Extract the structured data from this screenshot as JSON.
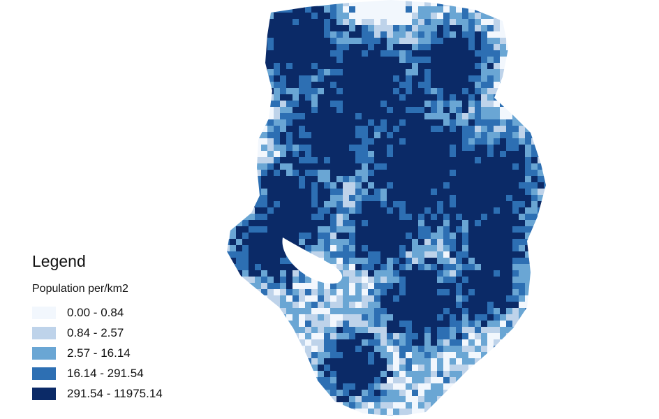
{
  "map": {
    "colors": [
      "#f2f7fd",
      "#bed3ea",
      "#6aa6d4",
      "#2d6fb3",
      "#0b2a67"
    ]
  },
  "legend": {
    "title": "Legend",
    "subtitle": "Population per/km2",
    "classes": [
      {
        "label": "0.00 - 0.84",
        "color": "#f2f7fd"
      },
      {
        "label": "0.84 - 2.57",
        "color": "#bed3ea"
      },
      {
        "label": "2.57 - 16.14",
        "color": "#6aa6d4"
      },
      {
        "label": "16.14 - 291.54",
        "color": "#2d6fb3"
      },
      {
        "label": "291.54 - 11975.14",
        "color": "#0b2a67"
      }
    ]
  }
}
